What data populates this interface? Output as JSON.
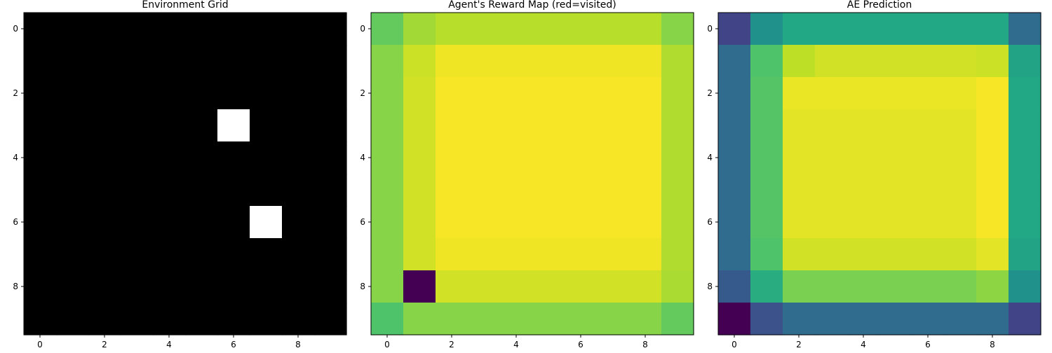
{
  "chart_data": [
    {
      "type": "heatmap",
      "title": "Environment Grid",
      "colormap": "gray",
      "xticks": [
        0,
        2,
        4,
        6,
        8
      ],
      "yticks": [
        0,
        2,
        4,
        6,
        8
      ],
      "grid": false,
      "values": [
        [
          0,
          0,
          0,
          0,
          0,
          0,
          0,
          0,
          0,
          0
        ],
        [
          0,
          0,
          0,
          0,
          0,
          0,
          0,
          0,
          0,
          0
        ],
        [
          0,
          0,
          0,
          0,
          0,
          0,
          0,
          0,
          0,
          0
        ],
        [
          0,
          0,
          0,
          0,
          0,
          0,
          1,
          0,
          0,
          0
        ],
        [
          0,
          0,
          0,
          0,
          0,
          0,
          0,
          0,
          0,
          0
        ],
        [
          0,
          0,
          0,
          0,
          0,
          0,
          0,
          0,
          0,
          0
        ],
        [
          0,
          0,
          0,
          0,
          0,
          0,
          0,
          1,
          0,
          0
        ],
        [
          0,
          0,
          0,
          0,
          0,
          0,
          0,
          0,
          0,
          0
        ],
        [
          0,
          0,
          0,
          0,
          0,
          0,
          0,
          0,
          0,
          0
        ],
        [
          0,
          0,
          0,
          0,
          0,
          0,
          0,
          0,
          0,
          0
        ]
      ]
    },
    {
      "type": "heatmap",
      "title": "Agent's Reward Map (red=visited)",
      "colormap": "viridis",
      "xticks": [
        0,
        2,
        4,
        6,
        8
      ],
      "yticks": [
        0,
        2,
        4,
        6,
        8
      ],
      "grid": false,
      "values": [
        [
          0.76,
          0.86,
          0.89,
          0.89,
          0.89,
          0.89,
          0.89,
          0.89,
          0.89,
          0.82
        ],
        [
          0.82,
          0.92,
          0.98,
          0.98,
          0.98,
          0.98,
          0.98,
          0.98,
          0.98,
          0.88
        ],
        [
          0.82,
          0.93,
          0.99,
          0.99,
          0.99,
          0.99,
          0.99,
          0.99,
          0.99,
          0.88
        ],
        [
          0.82,
          0.93,
          0.99,
          0.99,
          0.99,
          0.99,
          0.99,
          0.99,
          0.99,
          0.88
        ],
        [
          0.82,
          0.93,
          0.99,
          0.99,
          0.99,
          0.99,
          0.99,
          0.99,
          0.99,
          0.88
        ],
        [
          0.82,
          0.93,
          0.99,
          0.99,
          0.99,
          0.99,
          0.99,
          0.99,
          0.99,
          0.88
        ],
        [
          0.82,
          0.93,
          0.99,
          0.99,
          0.99,
          0.99,
          0.99,
          0.99,
          0.99,
          0.88
        ],
        [
          0.82,
          0.93,
          0.98,
          0.98,
          0.98,
          0.98,
          0.98,
          0.98,
          0.98,
          0.88
        ],
        [
          0.82,
          0.0,
          0.93,
          0.93,
          0.93,
          0.93,
          0.93,
          0.93,
          0.93,
          0.87
        ],
        [
          0.72,
          0.82,
          0.82,
          0.82,
          0.82,
          0.82,
          0.82,
          0.82,
          0.82,
          0.76
        ]
      ]
    },
    {
      "type": "heatmap",
      "title": "AE Prediction",
      "colormap": "viridis",
      "xticks": [
        0,
        2,
        4,
        6,
        8
      ],
      "yticks": [
        0,
        2,
        4,
        6,
        8
      ],
      "grid": false,
      "values": [
        [
          0.2,
          0.5,
          0.6,
          0.6,
          0.6,
          0.6,
          0.6,
          0.6,
          0.6,
          0.35
        ],
        [
          0.35,
          0.72,
          0.9,
          0.93,
          0.93,
          0.93,
          0.93,
          0.93,
          0.92,
          0.58
        ],
        [
          0.35,
          0.73,
          0.97,
          0.97,
          0.97,
          0.97,
          0.97,
          0.97,
          0.99,
          0.6
        ],
        [
          0.35,
          0.73,
          0.96,
          0.96,
          0.96,
          0.96,
          0.96,
          0.96,
          0.99,
          0.6
        ],
        [
          0.35,
          0.73,
          0.96,
          0.96,
          0.96,
          0.96,
          0.96,
          0.96,
          0.99,
          0.6
        ],
        [
          0.35,
          0.73,
          0.96,
          0.96,
          0.96,
          0.96,
          0.96,
          0.96,
          0.99,
          0.6
        ],
        [
          0.35,
          0.73,
          0.96,
          0.96,
          0.96,
          0.96,
          0.96,
          0.96,
          0.99,
          0.6
        ],
        [
          0.35,
          0.72,
          0.93,
          0.93,
          0.93,
          0.93,
          0.93,
          0.93,
          0.96,
          0.58
        ],
        [
          0.28,
          0.62,
          0.8,
          0.8,
          0.8,
          0.8,
          0.8,
          0.8,
          0.83,
          0.5
        ],
        [
          0.0,
          0.25,
          0.35,
          0.35,
          0.35,
          0.35,
          0.35,
          0.35,
          0.35,
          0.2
        ]
      ]
    }
  ]
}
